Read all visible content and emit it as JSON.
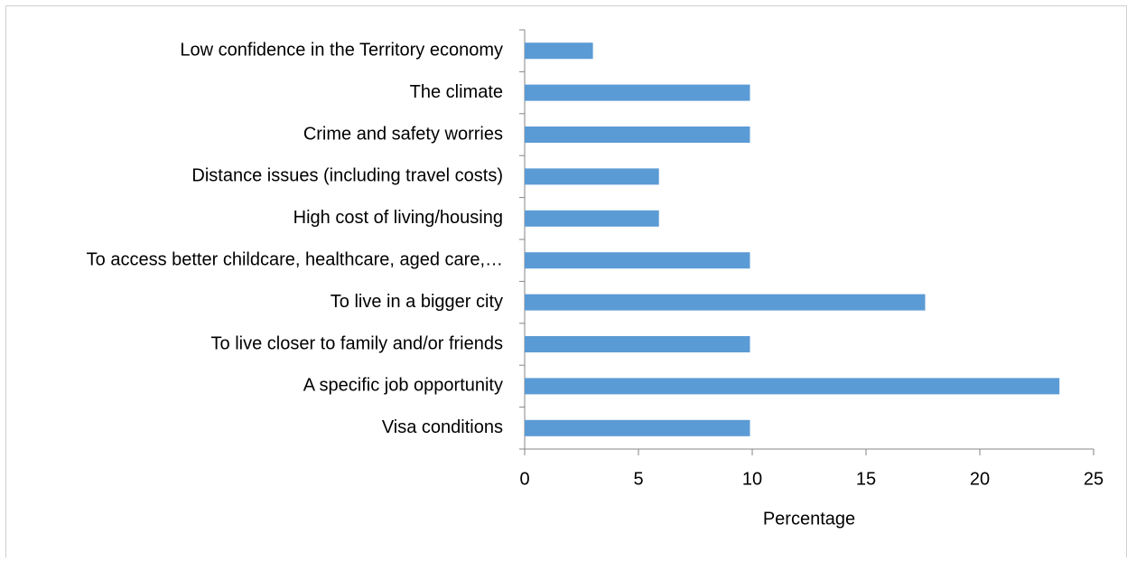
{
  "chart_data": {
    "type": "hbar",
    "x_label": "Percentage",
    "categories": [
      "Low confidence in the Territory economy",
      "The climate",
      "Crime and safety worries",
      "Distance issues (including travel costs)",
      "High cost of living/housing",
      "To access better childcare, healthcare, aged care,…",
      "To live in a bigger city",
      "To live closer to family and/or friends",
      "A specific job opportunity",
      "Visa conditions"
    ],
    "values": [
      3.0,
      9.9,
      9.9,
      5.9,
      5.9,
      9.9,
      17.6,
      9.9,
      23.5,
      9.9
    ],
    "color": "#5b9bd5",
    "xlim": [
      0,
      25
    ],
    "xticks": [
      0,
      5,
      10,
      15,
      20,
      25
    ],
    "grid": false
  }
}
